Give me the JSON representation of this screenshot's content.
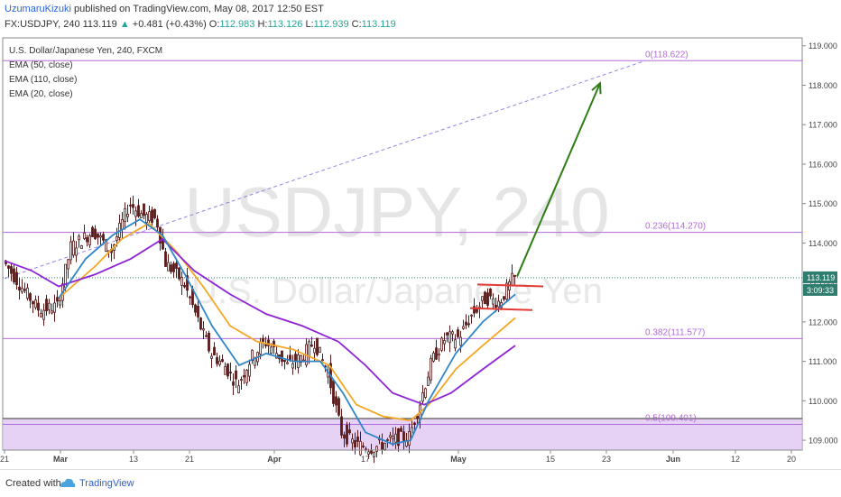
{
  "header": {
    "author": "UzumaruKizuki",
    "published": "published on TradingView.com, May 08, 2017 12:50 EST",
    "symbol": "FX:USDJPY, 240",
    "last": "113.119",
    "change": "+0.481 (+0.43%)",
    "o_label": "O:",
    "o": "112.983",
    "h_label": "H:",
    "h": "113.126",
    "l_label": "L:",
    "l": "112.939",
    "c_label": "C:",
    "c": "113.119"
  },
  "legend": {
    "title": "U.S. Dollar/Japanese Yen, 240, FXCM",
    "ema1": "EMA (50, close)",
    "ema2": "EMA (110, close)",
    "ema3": "EMA (20, close)"
  },
  "watermark": {
    "symbol": "USDJPY, 240",
    "name": "U.S. Dollar/Japanese Yen"
  },
  "footer": {
    "created": "Created with",
    "brand": "TradingView"
  },
  "colors": {
    "ema50": "#f5a623",
    "ema110": "#8e24d6",
    "ema20": "#2f86c9",
    "candle": "#5a1a1a",
    "fib": "#b36ad9",
    "arrow": "#2e7d16",
    "resistance": "#e53935",
    "zone": "#dcc3f2"
  },
  "chart_data": {
    "type": "candlestick",
    "y_axis_ticks": [
      "119.000",
      "118.000",
      "117.000",
      "116.000",
      "115.000",
      "114.000",
      "113.000",
      "112.000",
      "111.000",
      "110.000",
      "109.000"
    ],
    "ylim": [
      108.75,
      119.2
    ],
    "x_axis_ticks": [
      "21",
      "Mar",
      "13",
      "21",
      "Apr",
      "17",
      "May",
      "15",
      "23",
      "Jun",
      "12",
      "20"
    ],
    "last_price_label": "113.119",
    "countdown_label": "3:09:33",
    "fib_levels": [
      {
        "label": "0(118.622)",
        "value": 118.622
      },
      {
        "label": "0.236(114.270)",
        "value": 114.27
      },
      {
        "label": "0.382(111.577)",
        "value": 111.577
      },
      {
        "label": "0.5(109.401)",
        "value": 109.401
      }
    ],
    "support_zone": [
      108.75,
      109.55
    ],
    "price_path": [
      {
        "t": 0,
        "v": 113.55
      },
      {
        "t": 20,
        "v": 112.9
      },
      {
        "t": 40,
        "v": 112.3
      },
      {
        "t": 60,
        "v": 112.4
      },
      {
        "t": 75,
        "v": 113.9
      },
      {
        "t": 100,
        "v": 114.3
      },
      {
        "t": 120,
        "v": 113.8
      },
      {
        "t": 140,
        "v": 115.0
      },
      {
        "t": 155,
        "v": 114.7
      },
      {
        "t": 170,
        "v": 114.6
      },
      {
        "t": 180,
        "v": 113.5
      },
      {
        "t": 200,
        "v": 113.0
      },
      {
        "t": 215,
        "v": 112.1
      },
      {
        "t": 230,
        "v": 111.2
      },
      {
        "t": 245,
        "v": 110.9
      },
      {
        "t": 260,
        "v": 110.4
      },
      {
        "t": 275,
        "v": 111.1
      },
      {
        "t": 290,
        "v": 111.5
      },
      {
        "t": 300,
        "v": 111.3
      },
      {
        "t": 315,
        "v": 110.9
      },
      {
        "t": 330,
        "v": 111.1
      },
      {
        "t": 345,
        "v": 111.5
      },
      {
        "t": 360,
        "v": 110.7
      },
      {
        "t": 375,
        "v": 109.2
      },
      {
        "t": 390,
        "v": 108.9
      },
      {
        "t": 410,
        "v": 108.8
      },
      {
        "t": 430,
        "v": 109.0
      },
      {
        "t": 450,
        "v": 109.1
      },
      {
        "t": 460,
        "v": 109.8
      },
      {
        "t": 475,
        "v": 111.0
      },
      {
        "t": 490,
        "v": 111.6
      },
      {
        "t": 505,
        "v": 111.6
      },
      {
        "t": 520,
        "v": 112.2
      },
      {
        "t": 535,
        "v": 112.6
      },
      {
        "t": 550,
        "v": 112.5
      },
      {
        "t": 565,
        "v": 113.1
      }
    ],
    "series": [
      {
        "name": "EMA (50, close)",
        "color": "#f5a623",
        "points": [
          {
            "t": 60,
            "v": 112.6
          },
          {
            "t": 100,
            "v": 113.4
          },
          {
            "t": 130,
            "v": 114.1
          },
          {
            "t": 160,
            "v": 114.5
          },
          {
            "t": 190,
            "v": 113.8
          },
          {
            "t": 220,
            "v": 112.9
          },
          {
            "t": 250,
            "v": 111.9
          },
          {
            "t": 280,
            "v": 111.5
          },
          {
            "t": 320,
            "v": 111.3
          },
          {
            "t": 360,
            "v": 110.9
          },
          {
            "t": 390,
            "v": 109.9
          },
          {
            "t": 420,
            "v": 109.6
          },
          {
            "t": 450,
            "v": 109.5
          },
          {
            "t": 470,
            "v": 109.9
          },
          {
            "t": 500,
            "v": 110.8
          },
          {
            "t": 530,
            "v": 111.4
          },
          {
            "t": 566,
            "v": 112.1
          }
        ]
      },
      {
        "name": "EMA (110, close)",
        "color": "#8e24d6",
        "points": [
          {
            "t": 0,
            "v": 113.55
          },
          {
            "t": 30,
            "v": 113.3
          },
          {
            "t": 60,
            "v": 112.9
          },
          {
            "t": 100,
            "v": 113.2
          },
          {
            "t": 140,
            "v": 113.6
          },
          {
            "t": 175,
            "v": 114.1
          },
          {
            "t": 210,
            "v": 113.3
          },
          {
            "t": 250,
            "v": 112.7
          },
          {
            "t": 290,
            "v": 112.2
          },
          {
            "t": 330,
            "v": 111.9
          },
          {
            "t": 370,
            "v": 111.5
          },
          {
            "t": 400,
            "v": 110.9
          },
          {
            "t": 430,
            "v": 110.2
          },
          {
            "t": 465,
            "v": 109.9
          },
          {
            "t": 495,
            "v": 110.2
          },
          {
            "t": 530,
            "v": 110.8
          },
          {
            "t": 566,
            "v": 111.4
          }
        ]
      },
      {
        "name": "EMA (20, close)",
        "color": "#2f86c9",
        "points": [
          {
            "t": 60,
            "v": 112.6
          },
          {
            "t": 90,
            "v": 113.6
          },
          {
            "t": 120,
            "v": 114.2
          },
          {
            "t": 150,
            "v": 114.6
          },
          {
            "t": 175,
            "v": 114.2
          },
          {
            "t": 200,
            "v": 113.2
          },
          {
            "t": 230,
            "v": 111.9
          },
          {
            "t": 260,
            "v": 110.9
          },
          {
            "t": 290,
            "v": 111.2
          },
          {
            "t": 320,
            "v": 111.0
          },
          {
            "t": 350,
            "v": 111.0
          },
          {
            "t": 375,
            "v": 110.2
          },
          {
            "t": 400,
            "v": 109.2
          },
          {
            "t": 430,
            "v": 108.9
          },
          {
            "t": 450,
            "v": 109.0
          },
          {
            "t": 470,
            "v": 110.0
          },
          {
            "t": 500,
            "v": 111.2
          },
          {
            "t": 530,
            "v": 112.0
          },
          {
            "t": 566,
            "v": 112.7
          }
        ]
      }
    ],
    "resistance_lines": [
      {
        "t1": 524,
        "v1": 112.95,
        "t2": 597,
        "v2": 112.9
      },
      {
        "t1": 516,
        "v1": 112.35,
        "t2": 585,
        "v2": 112.3
      }
    ],
    "trend_line": {
      "t1": 0,
      "v1": 113.1,
      "t2": 710,
      "v2": 118.62
    },
    "projection_arrow": {
      "t1": 568,
      "v1": 113.15,
      "t2": 660,
      "v2": 118.05
    }
  }
}
